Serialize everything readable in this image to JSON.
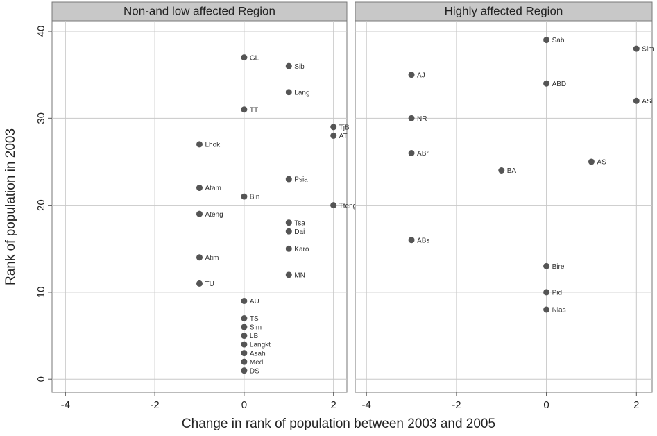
{
  "xlabel": "Change in rank of population between 2003 and 2005",
  "ylabel": "Rank of population in 2003",
  "chart_data": [
    {
      "type": "scatter",
      "title": "Non-and low affected Region",
      "color": "#555555",
      "grid": true,
      "xlim": [
        -4.3,
        2.3
      ],
      "ylim": [
        -1.5,
        41.2
      ],
      "xticks": [
        -4,
        -2,
        0,
        2
      ],
      "yticks": [
        0,
        10,
        20,
        30,
        40
      ],
      "labels": [
        "GL",
        "Sib",
        "Lang",
        "TT",
        "TjB",
        "AT",
        "Lhok",
        "Psia",
        "Atam",
        "Bin",
        "Tteng",
        "Ateng",
        "Tsa",
        "Dai",
        "Karo",
        "Atim",
        "MN",
        "TU",
        "AU",
        "TS",
        "Sim",
        "LB",
        "Langkt",
        "Asah",
        "Med",
        "DS"
      ],
      "x": [
        0,
        1,
        1,
        0,
        2,
        2,
        -1,
        1,
        -1,
        0,
        2,
        -1,
        1,
        1,
        1,
        -1,
        1,
        -1,
        0,
        0,
        0,
        0,
        0,
        0,
        0,
        0
      ],
      "y": [
        37,
        36,
        33,
        31,
        29,
        28,
        27,
        23,
        22,
        21,
        20,
        19,
        18,
        17,
        15,
        14,
        12,
        11,
        9,
        7,
        6,
        5,
        4,
        3,
        2,
        1
      ]
    },
    {
      "type": "scatter",
      "title": "Highly affected Region",
      "color": "#555555",
      "grid": true,
      "xlim": [
        -4.25,
        2.35
      ],
      "ylim": [
        -1.5,
        41.2
      ],
      "xticks": [
        -4,
        -2,
        0,
        2
      ],
      "yticks": [
        0,
        10,
        20,
        30,
        40
      ],
      "labels": [
        "Sab",
        "Sim",
        "AJ",
        "ABD",
        "ASi",
        "NR",
        "ABr",
        "AS",
        "BA",
        "ABs",
        "Bire",
        "Pid",
        "Nias"
      ],
      "x": [
        0,
        2,
        -3,
        0,
        2,
        -3,
        -3,
        1,
        -1,
        -3,
        0,
        0,
        0
      ],
      "y": [
        39,
        38,
        35,
        34,
        32,
        30,
        26,
        25,
        24,
        16,
        13,
        10,
        8
      ]
    }
  ]
}
